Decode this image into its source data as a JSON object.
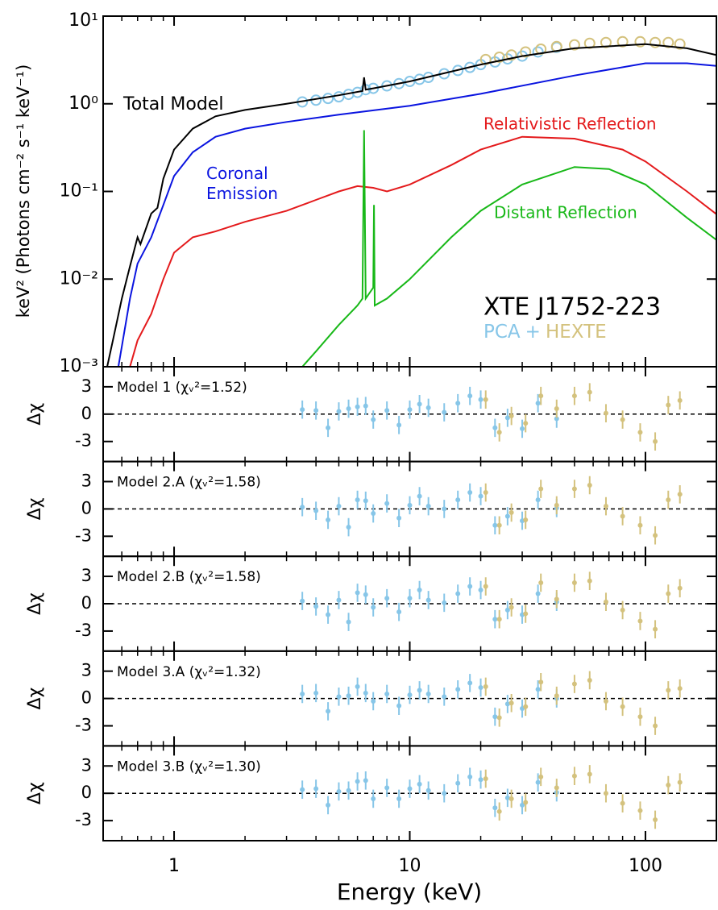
{
  "chart_data": [
    {
      "type": "line",
      "log_x": true,
      "log_y": true,
      "title": "XTE J1752-223",
      "ylabel": "keV² (Photons cm⁻² s⁻¹ keV⁻¹)",
      "xlabel": "Energy (keV)",
      "xlim": [
        0.5,
        200
      ],
      "xticks": [
        1,
        10,
        100
      ],
      "xticks_minor": [
        0.6,
        0.7,
        0.8,
        0.9,
        2,
        3,
        4,
        5,
        6,
        7,
        8,
        9,
        20,
        30,
        40,
        50,
        60,
        70,
        80,
        90,
        200
      ],
      "ylim": [
        0.001,
        10
      ],
      "yticks": [
        {
          "value": 10,
          "label": "10¹"
        },
        {
          "value": 1,
          "label": "10⁰"
        },
        {
          "value": 0.1,
          "label": "10⁻¹"
        },
        {
          "value": 0.01,
          "label": "10⁻²"
        },
        {
          "value": 0.001,
          "label": "10⁻³"
        }
      ],
      "legend_joiner": "+",
      "data_series": [
        {
          "name": "PCA",
          "color": "#87c6e8",
          "x": [
            3.5,
            4,
            4.5,
            5,
            5.5,
            6,
            6.5,
            7,
            8,
            9,
            10,
            11,
            12,
            14,
            16,
            18,
            20,
            23,
            26,
            30,
            35,
            42
          ],
          "values": [
            1.05,
            1.1,
            1.15,
            1.2,
            1.28,
            1.35,
            1.45,
            1.5,
            1.6,
            1.7,
            1.8,
            1.9,
            2.0,
            2.2,
            2.4,
            2.6,
            2.8,
            3.0,
            3.25,
            3.5,
            3.9,
            4.4
          ]
        },
        {
          "name": "HEXTE",
          "color": "#d4c27e",
          "x": [
            21,
            24,
            27,
            31,
            36,
            42,
            50,
            58,
            68,
            80,
            95,
            110,
            125,
            140
          ],
          "values": [
            3.2,
            3.4,
            3.6,
            3.9,
            4.2,
            4.5,
            4.7,
            4.9,
            5.0,
            5.1,
            5.1,
            5.0,
            5.0,
            4.8
          ]
        }
      ],
      "series": [
        {
          "name": "Total Model",
          "color": "#000000",
          "x": [
            0.52,
            0.55,
            0.6,
            0.65,
            0.7,
            0.72,
            0.8,
            0.85,
            0.9,
            1,
            1.2,
            1.5,
            2,
            3,
            5,
            6.3,
            6.4,
            6.5,
            7,
            10,
            20,
            30,
            50,
            100,
            150,
            200
          ],
          "values": [
            0.001,
            0.002,
            0.006,
            0.014,
            0.03,
            0.025,
            0.056,
            0.065,
            0.14,
            0.3,
            0.52,
            0.72,
            0.85,
            1.0,
            1.25,
            1.4,
            2.0,
            1.45,
            1.5,
            1.8,
            2.8,
            3.5,
            4.3,
            4.8,
            4.3,
            3.6
          ]
        },
        {
          "name": "Coronal Emission",
          "color": "#0a14e0",
          "x": [
            0.58,
            0.65,
            0.7,
            0.8,
            0.9,
            1,
            1.2,
            1.5,
            2,
            3,
            5,
            10,
            20,
            50,
            100,
            150,
            200
          ],
          "values": [
            0.001,
            0.006,
            0.015,
            0.03,
            0.07,
            0.15,
            0.28,
            0.42,
            0.52,
            0.62,
            0.75,
            0.95,
            1.3,
            2.1,
            2.9,
            2.9,
            2.7
          ]
        },
        {
          "name": "Relativistic Reflection",
          "color": "#e41a1c",
          "x": [
            0.65,
            0.7,
            0.8,
            0.9,
            1,
            1.2,
            1.5,
            2,
            3,
            4,
            5,
            6,
            7,
            8,
            10,
            15,
            20,
            30,
            50,
            80,
            100,
            150,
            200
          ],
          "values": [
            0.001,
            0.002,
            0.004,
            0.01,
            0.02,
            0.03,
            0.035,
            0.045,
            0.06,
            0.08,
            0.1,
            0.115,
            0.11,
            0.1,
            0.12,
            0.2,
            0.3,
            0.42,
            0.4,
            0.3,
            0.22,
            0.1,
            0.055
          ]
        },
        {
          "name": "Distant Reflection",
          "color": "#18b818",
          "x": [
            3.5,
            4,
            5,
            6,
            6.3,
            6.4,
            6.5,
            7,
            7.05,
            7.1,
            8,
            10,
            15,
            20,
            30,
            50,
            70,
            100,
            150,
            200
          ],
          "values": [
            0.001,
            0.0015,
            0.003,
            0.005,
            0.006,
            0.5,
            0.006,
            0.008,
            0.07,
            0.005,
            0.006,
            0.01,
            0.03,
            0.06,
            0.12,
            0.19,
            0.18,
            0.12,
            0.05,
            0.028
          ]
        }
      ]
    },
    {
      "type": "residual",
      "label": "Model 1 (χᵥ²=1.52)",
      "ylabel": "Δχ",
      "ylim": [
        -5.2,
        5.2
      ],
      "yticks": [
        3,
        0,
        -3
      ],
      "reference_line": 0,
      "series": [
        {
          "color": "#87c6e8",
          "error": 1,
          "x": [
            3.5,
            4,
            4.5,
            5,
            5.5,
            6,
            6.5,
            7,
            8,
            9,
            10,
            11,
            12,
            14,
            16,
            18,
            20,
            23,
            26,
            30,
            35,
            42
          ],
          "values": [
            0.5,
            0.4,
            -1.5,
            0.3,
            0.6,
            0.8,
            0.9,
            -0.6,
            0.4,
            -1.2,
            0.5,
            1.1,
            0.7,
            0.2,
            1.2,
            2.0,
            1.6,
            -1.5,
            -0.4,
            -1.6,
            1.2,
            -0.5
          ]
        },
        {
          "color": "#d4c27e",
          "error": 1,
          "x": [
            21,
            24,
            27,
            31,
            36,
            42,
            50,
            58,
            68,
            80,
            95,
            110,
            125,
            140
          ],
          "values": [
            1.6,
            -2.0,
            -0.2,
            -1.0,
            2.0,
            0.6,
            2.0,
            2.4,
            0.1,
            -0.6,
            -2.0,
            -3.0,
            1.0,
            1.5
          ]
        }
      ]
    },
    {
      "type": "residual",
      "label": "Model 2.A (χᵥ²=1.58)",
      "ylabel": "Δχ",
      "ylim": [
        -5.2,
        5.2
      ],
      "yticks": [
        3,
        0,
        -3
      ],
      "reference_line": 0,
      "series": [
        {
          "color": "#87c6e8",
          "error": 1,
          "x": [
            3.5,
            4,
            4.5,
            5,
            5.5,
            6,
            6.5,
            7,
            8,
            9,
            10,
            11,
            12,
            14,
            16,
            18,
            20,
            23,
            26,
            30,
            35,
            42
          ],
          "values": [
            0.2,
            -0.2,
            -1.2,
            0.3,
            -2.0,
            1.0,
            0.9,
            -0.5,
            0.6,
            -1.0,
            0.4,
            1.4,
            0.3,
            0.0,
            1.0,
            1.8,
            1.4,
            -1.8,
            -0.8,
            -1.3,
            1.0,
            0.1
          ]
        },
        {
          "color": "#d4c27e",
          "error": 1,
          "x": [
            21,
            24,
            27,
            31,
            36,
            42,
            50,
            58,
            68,
            80,
            95,
            110,
            125,
            140
          ],
          "values": [
            1.8,
            -1.8,
            -0.4,
            -1.2,
            2.2,
            0.4,
            2.2,
            2.6,
            0.3,
            -0.8,
            -1.8,
            -2.9,
            1.0,
            1.6
          ]
        }
      ]
    },
    {
      "type": "residual",
      "label": "Model 2.B (χᵥ²=1.58)",
      "ylabel": "Δχ",
      "ylim": [
        -5.2,
        5.2
      ],
      "yticks": [
        3,
        0,
        -3
      ],
      "reference_line": 0,
      "series": [
        {
          "color": "#87c6e8",
          "error": 1,
          "x": [
            3.5,
            4,
            4.5,
            5,
            5.5,
            6,
            6.5,
            7,
            8,
            9,
            10,
            11,
            12,
            14,
            16,
            18,
            20,
            23,
            26,
            30,
            35,
            42
          ],
          "values": [
            0.3,
            -0.3,
            -1.2,
            0.4,
            -2.0,
            1.2,
            1.0,
            -0.4,
            0.6,
            -0.9,
            0.6,
            1.5,
            0.4,
            0.1,
            1.1,
            1.9,
            1.5,
            -1.7,
            -0.7,
            -1.2,
            1.1,
            0.2
          ]
        },
        {
          "color": "#d4c27e",
          "error": 1,
          "x": [
            21,
            24,
            27,
            31,
            36,
            42,
            50,
            58,
            68,
            80,
            95,
            110,
            125,
            140
          ],
          "values": [
            1.9,
            -1.7,
            -0.4,
            -1.1,
            2.3,
            0.5,
            2.3,
            2.5,
            0.2,
            -0.7,
            -1.9,
            -2.8,
            1.1,
            1.7
          ]
        }
      ]
    },
    {
      "type": "residual",
      "label": "Model 3.A (χᵥ²=1.32)",
      "ylabel": "Δχ",
      "ylim": [
        -5.2,
        5.2
      ],
      "yticks": [
        3,
        0,
        -3
      ],
      "reference_line": 0,
      "series": [
        {
          "color": "#87c6e8",
          "error": 1,
          "x": [
            3.5,
            4,
            4.5,
            5,
            5.5,
            6,
            6.5,
            7,
            8,
            9,
            10,
            11,
            12,
            14,
            16,
            18,
            20,
            23,
            26,
            30,
            35,
            42
          ],
          "values": [
            0.5,
            0.6,
            -1.4,
            0.2,
            0.3,
            1.3,
            0.6,
            -0.3,
            0.5,
            -0.8,
            0.4,
            0.9,
            0.5,
            0.2,
            1.0,
            1.7,
            1.2,
            -2.0,
            -0.6,
            -1.1,
            1.0,
            0.0
          ]
        },
        {
          "color": "#d4c27e",
          "error": 1,
          "x": [
            21,
            24,
            27,
            31,
            36,
            42,
            50,
            58,
            68,
            80,
            95,
            110,
            125,
            140
          ],
          "values": [
            1.3,
            -2.1,
            -0.5,
            -0.9,
            1.8,
            0.3,
            1.6,
            2.0,
            -0.3,
            -0.9,
            -2.0,
            -3.0,
            0.9,
            1.1
          ]
        }
      ]
    },
    {
      "type": "residual",
      "label": "Model 3.B (χᵥ²=1.30)",
      "ylabel": "Δχ",
      "ylim": [
        -5.2,
        5.2
      ],
      "yticks": [
        3,
        0,
        -3
      ],
      "reference_line": 0,
      "series": [
        {
          "color": "#87c6e8",
          "error": 1,
          "x": [
            3.5,
            4,
            4.5,
            5,
            5.5,
            6,
            6.5,
            7,
            8,
            9,
            10,
            11,
            12,
            14,
            16,
            18,
            20,
            23,
            26,
            30,
            35,
            42
          ],
          "values": [
            0.4,
            0.5,
            -1.3,
            0.2,
            0.3,
            1.3,
            1.4,
            -0.6,
            0.6,
            -0.6,
            0.5,
            1.0,
            0.3,
            0.0,
            1.1,
            1.8,
            1.5,
            -1.6,
            -0.5,
            -1.3,
            1.2,
            0.1
          ]
        },
        {
          "color": "#d4c27e",
          "error": 1,
          "x": [
            21,
            24,
            27,
            31,
            36,
            42,
            50,
            58,
            68,
            80,
            95,
            110,
            125,
            140
          ],
          "values": [
            1.6,
            -2.0,
            -0.6,
            -1.0,
            1.8,
            0.6,
            1.9,
            2.1,
            0.0,
            -1.1,
            -1.9,
            -2.9,
            0.9,
            1.2
          ]
        }
      ]
    }
  ]
}
